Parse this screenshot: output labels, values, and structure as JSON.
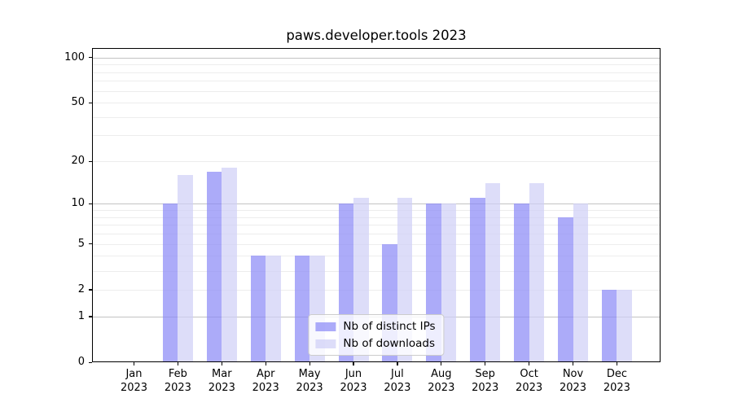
{
  "chart_data": {
    "type": "bar",
    "title": "paws.developer.tools 2023",
    "x_year": "2023",
    "categories": [
      "Jan",
      "Feb",
      "Mar",
      "Apr",
      "May",
      "Jun",
      "Jul",
      "Aug",
      "Sep",
      "Oct",
      "Nov",
      "Dec"
    ],
    "series": [
      {
        "name": "Nb of distinct IPs",
        "color": "rgba(137,135,246,0.7)",
        "values": [
          0,
          10,
          17,
          4,
          4,
          10,
          5,
          10,
          11,
          10,
          8,
          2
        ]
      },
      {
        "name": "Nb of downloads",
        "color": "rgba(207,206,246,0.7)",
        "values": [
          0,
          16,
          18,
          4,
          4,
          11,
          11,
          10,
          14,
          14,
          10,
          2
        ]
      }
    ],
    "yscale": "log1p",
    "ylim": [
      0,
      115
    ],
    "y_tick_values": [
      0,
      1,
      2,
      5,
      10,
      20,
      50,
      100
    ],
    "y_tick_labels": [
      "0",
      "1",
      "2",
      "5",
      "10",
      "20",
      "50",
      "100"
    ],
    "y_major_gridlines": [
      1,
      10,
      100
    ],
    "y_minor_gridlines": [
      2,
      3,
      4,
      5,
      6,
      7,
      8,
      9,
      20,
      30,
      40,
      50,
      60,
      70,
      80,
      90
    ],
    "grid": true,
    "legend_position": "lower center",
    "colors": {
      "bar_distinct_ips": "rgba(137,135,246,0.7)",
      "bar_downloads": "rgba(207,206,246,0.7)",
      "major_grid": "#c3c3c3",
      "minor_grid": "#ededed",
      "axis": "#000000"
    }
  }
}
